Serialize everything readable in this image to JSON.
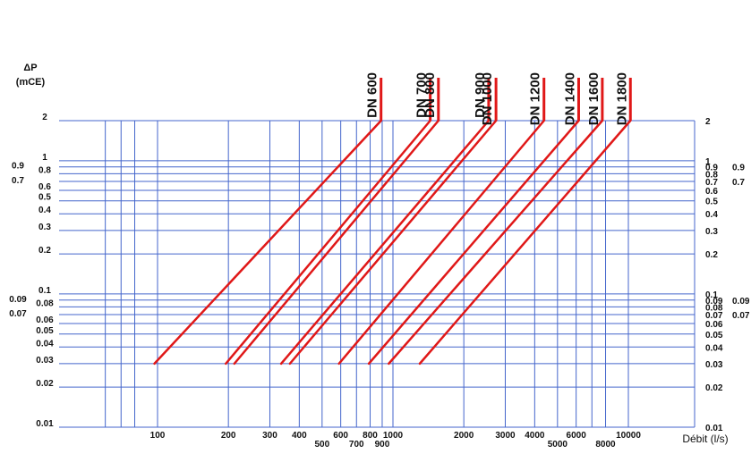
{
  "chart_data": {
    "type": "line",
    "title": "",
    "ylabel_line1": "ΔP",
    "ylabel_line2": "(mCE)",
    "xlabel": "Débit (l/s)",
    "xscale": "log",
    "yscale": "log",
    "xlim": [
      50,
      10000
    ],
    "ylim": [
      0.01,
      2
    ],
    "grid": true,
    "x_ticks_row1": [
      {
        "value": 100,
        "label": "100"
      },
      {
        "value": 200,
        "label": "200"
      },
      {
        "value": 300,
        "label": "300"
      },
      {
        "value": 400,
        "label": "400"
      },
      {
        "value": 600,
        "label": "600"
      },
      {
        "value": 800,
        "label": "800"
      },
      {
        "value": 1000,
        "label": "1000"
      },
      {
        "value": 2000,
        "label": "2000"
      },
      {
        "value": 3000,
        "label": "3000"
      },
      {
        "value": 4000,
        "label": "4000"
      },
      {
        "value": 6000,
        "label": "6000"
      },
      {
        "value": 10000,
        "label": "10000"
      }
    ],
    "x_ticks_row2": [
      {
        "value": 500,
        "label": "500"
      },
      {
        "value": 700,
        "label": "700"
      },
      {
        "value": 900,
        "label": "900"
      },
      {
        "value": 5000,
        "label": "5000"
      },
      {
        "value": 8000,
        "label": "8000"
      }
    ],
    "x_gridlines": [
      60,
      70,
      80,
      100,
      200,
      300,
      400,
      500,
      600,
      700,
      800,
      900,
      1000,
      2000,
      3000,
      4000,
      5000,
      6000,
      7000,
      8000,
      10000
    ],
    "y_ticks": [
      {
        "value": 2,
        "label": "2"
      },
      {
        "value": 1,
        "label": "1"
      },
      {
        "value": 0.9,
        "label": "0.9"
      },
      {
        "value": 0.8,
        "label": "0.8"
      },
      {
        "value": 0.7,
        "label": "0.7"
      },
      {
        "value": 0.6,
        "label": "0.6"
      },
      {
        "value": 0.5,
        "label": "0.5"
      },
      {
        "value": 0.4,
        "label": "0.4"
      },
      {
        "value": 0.3,
        "label": "0.3"
      },
      {
        "value": 0.2,
        "label": "0.2"
      },
      {
        "value": 0.1,
        "label": "0.1"
      },
      {
        "value": 0.09,
        "label": "0.09"
      },
      {
        "value": 0.08,
        "label": "0.08"
      },
      {
        "value": 0.07,
        "label": "0.07"
      },
      {
        "value": 0.06,
        "label": "0.06"
      },
      {
        "value": 0.05,
        "label": "0.05"
      },
      {
        "value": 0.04,
        "label": "0.04"
      },
      {
        "value": 0.03,
        "label": "0.03"
      },
      {
        "value": 0.02,
        "label": "0.02"
      },
      {
        "value": 0.01,
        "label": "0.01"
      }
    ],
    "y_left_offset_labels": [
      "0.9",
      "0.7",
      "0.09",
      "0.07"
    ],
    "series": [
      {
        "name": "DN 600",
        "x": [
          97,
          890
        ],
        "y": [
          0.03,
          2
        ]
      },
      {
        "name": "DN 700",
        "x": [
          195,
          1440
        ],
        "y": [
          0.03,
          2
        ]
      },
      {
        "name": "DN 800",
        "x": [
          212,
          1560
        ],
        "y": [
          0.03,
          2
        ]
      },
      {
        "name": "DN 900",
        "x": [
          335,
          2550
        ],
        "y": [
          0.03,
          2
        ]
      },
      {
        "name": "DN 1000",
        "x": [
          365,
          2740
        ],
        "y": [
          0.03,
          2
        ]
      },
      {
        "name": "DN 1200",
        "x": [
          590,
          4380
        ],
        "y": [
          0.03,
          2
        ]
      },
      {
        "name": "DN 1400",
        "x": [
          790,
          6150
        ],
        "y": [
          0.03,
          2
        ]
      },
      {
        "name": "DN 1600",
        "x": [
          960,
          7750
        ],
        "y": [
          0.03,
          2
        ]
      },
      {
        "name": "DN 1800",
        "x": [
          1300,
          10200
        ],
        "y": [
          0.03,
          2
        ]
      }
    ],
    "colors": {
      "grid": "#4466cc",
      "series": "#e01818",
      "text": "#111111"
    }
  }
}
